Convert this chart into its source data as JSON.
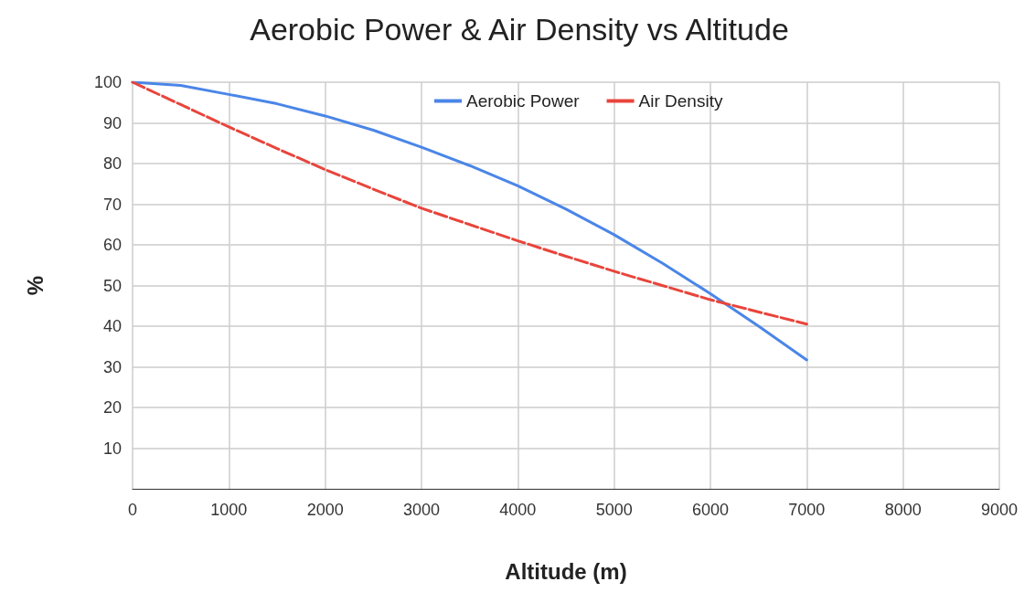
{
  "chart_data": {
    "type": "line",
    "title": "Aerobic Power & Air Density vs Altitude",
    "xlabel": "Altitude (m)",
    "ylabel": "%",
    "x": [
      0,
      500,
      1000,
      1500,
      2000,
      2500,
      3000,
      3500,
      4000,
      4500,
      5000,
      5500,
      6000,
      6500,
      7000
    ],
    "series": [
      {
        "name": "Aerobic Power",
        "color": "#4a86e8",
        "line_style": "solid",
        "values": [
          100,
          99.2,
          97,
          94.7,
          91.7,
          88.2,
          84,
          79.5,
          74.5,
          68.8,
          62.5,
          55.5,
          48,
          40,
          31.7
        ]
      },
      {
        "name": "Air Density",
        "color": "#e8453c",
        "line_style": "dashed",
        "values": [
          100,
          94.5,
          89,
          83.7,
          78.5,
          73.7,
          69,
          65,
          61,
          57.2,
          53.5,
          50,
          46.5,
          43.5,
          40.5
        ]
      }
    ],
    "xlim": [
      0,
      9000
    ],
    "xticks": [
      0,
      1000,
      2000,
      3000,
      4000,
      5000,
      6000,
      7000,
      8000,
      9000
    ],
    "ylim": [
      0,
      100
    ],
    "yticks": [
      10,
      20,
      30,
      40,
      50,
      60,
      70,
      80,
      90,
      100
    ],
    "grid": true,
    "legend": "top",
    "marker": "none"
  }
}
